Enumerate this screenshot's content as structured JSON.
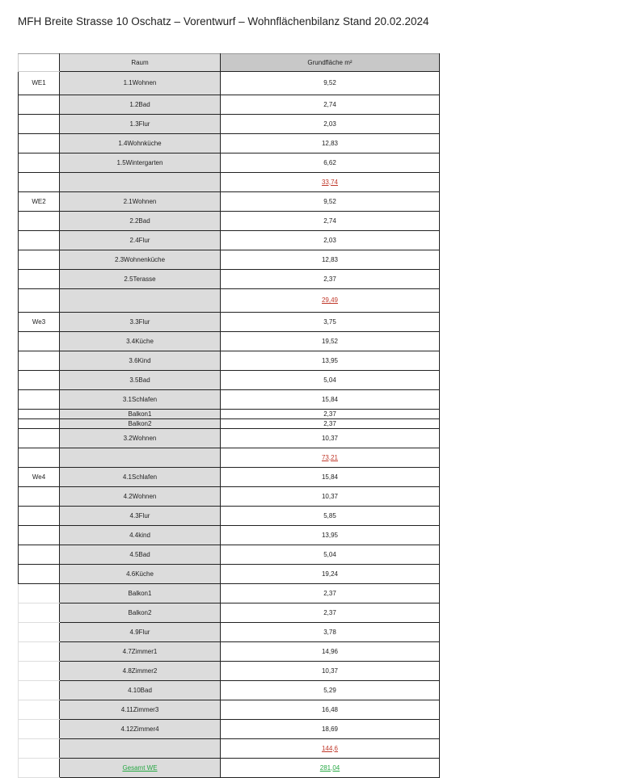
{
  "title": "MFH Breite Strasse 10  Oschatz – Vorentwurf – Wohnflächenbilanz Stand 20.02.2024",
  "table": {
    "headers": [
      "",
      "Raum",
      "Grundfläche m²"
    ],
    "rows": [
      {
        "unit": "WE1",
        "room": "1.1Wohnen",
        "area": "9,52"
      },
      {
        "unit": "",
        "room": "1.2Bad",
        "area": "2,74"
      },
      {
        "unit": "",
        "room": "1.3Flur",
        "area": "2,03"
      },
      {
        "unit": "",
        "room": "1.4Wohnküche",
        "area": "12,83"
      },
      {
        "unit": "",
        "room": "1.5Wintergarten",
        "area": "6,62"
      },
      {
        "unit": "",
        "room": "",
        "area": "33,74",
        "type": "subtotal"
      },
      {
        "unit": "WE2",
        "room": "2.1Wohnen",
        "area": "9,52"
      },
      {
        "unit": "",
        "room": "2.2Bad",
        "area": "2,74"
      },
      {
        "unit": "",
        "room": "2.4Flur",
        "area": "2,03"
      },
      {
        "unit": "",
        "room": "2.3Wohnenküche",
        "area": "12,83"
      },
      {
        "unit": "",
        "room": "2.5Terasse",
        "area": "2,37"
      },
      {
        "unit": "",
        "room": "",
        "area": "29,49",
        "type": "subtotal"
      },
      {
        "unit": "We3",
        "room": "3.3Flur",
        "area": "3,75"
      },
      {
        "unit": "",
        "room": "3.4Küche",
        "area": "19,52"
      },
      {
        "unit": "",
        "room": "3.6Kind",
        "area": "13,95"
      },
      {
        "unit": "",
        "room": "3.5Bad",
        "area": "5,04"
      },
      {
        "unit": "",
        "room": "3.1Schlafen",
        "area": "15,84"
      },
      {
        "unit": "",
        "room": "Balkon1",
        "area": "2,37"
      },
      {
        "unit": "",
        "room": "Balkon2",
        "area": "2,37"
      },
      {
        "unit": "",
        "room": "3.2Wohnen",
        "area": "10,37"
      },
      {
        "unit": "",
        "room": "",
        "area": "73,21",
        "type": "subtotal"
      },
      {
        "unit": "We4",
        "room": "4.1Schlafen",
        "area": "15,84"
      },
      {
        "unit": "",
        "room": "4.2Wohnen",
        "area": "10,37"
      },
      {
        "unit": "",
        "room": "4.3Flur",
        "area": "5,85"
      },
      {
        "unit": "",
        "room": "4.4kind",
        "area": "13,95"
      },
      {
        "unit": "",
        "room": "4.5Bad",
        "area": "5,04"
      },
      {
        "unit": "",
        "room": "4.6Küche",
        "area": "19,24"
      },
      {
        "unit": "",
        "room": "Balkon1",
        "area": "2,37"
      },
      {
        "unit": "",
        "room": "Balkon2",
        "area": "2,37"
      },
      {
        "unit": "",
        "room": "4.9Flur",
        "area": "3,78"
      },
      {
        "unit": "",
        "room": "4.7Zimmer1",
        "area": "14,96"
      },
      {
        "unit": "",
        "room": "4.8Zimmer2",
        "area": "10,37"
      },
      {
        "unit": "",
        "room": "4.10Bad",
        "area": "5,29"
      },
      {
        "unit": "",
        "room": "4.11Zimmer3",
        "area": "16,48"
      },
      {
        "unit": "",
        "room": "4.12Zimmer4",
        "area": "18,69"
      },
      {
        "unit": "",
        "room": "",
        "area": "144,6",
        "type": "subtotal"
      },
      {
        "unit": "",
        "room": "Gesamt WE",
        "area": "281,04",
        "type": "total"
      }
    ]
  },
  "colors": {
    "subtotal": "#c0392b",
    "total": "#27a844",
    "room_column_bg": "#dcdcdc",
    "header_bg": "#c8c8c8"
  }
}
